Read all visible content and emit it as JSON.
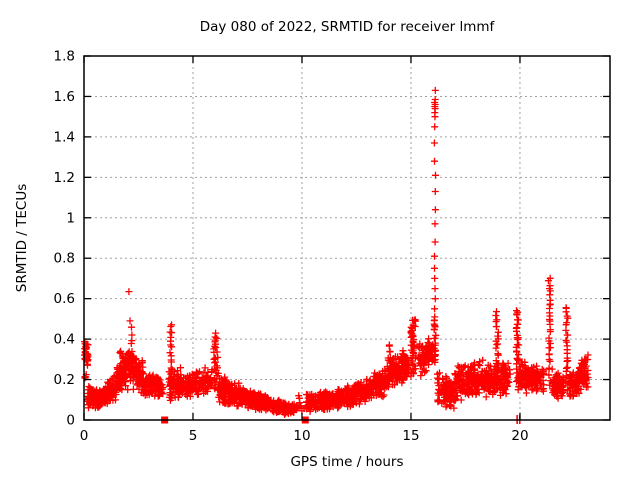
{
  "window": {
    "background": "#ffffff"
  },
  "chart_data": {
    "type": "scatter",
    "title": "Day 080 of 2022, SRMTID for receiver lmmf",
    "xlabel": "GPS time / hours",
    "ylabel": "SRMTID / TECUs",
    "xlim": [
      0,
      24.13
    ],
    "ylim": [
      0,
      1.8
    ],
    "grid": {
      "show": true,
      "color": "#a0a0a0",
      "dash": "2,3"
    },
    "legend": "none",
    "marker": {
      "shape": "plus",
      "color": "#ff0000",
      "size": 7
    },
    "colors": {
      "text": "#000000",
      "border": "#000000"
    },
    "seed": 20220080,
    "xticks": [
      {
        "v": 0,
        "label": "0"
      },
      {
        "v": 5,
        "label": "5"
      },
      {
        "v": 10,
        "label": "10"
      },
      {
        "v": 15,
        "label": "15"
      },
      {
        "v": 20,
        "label": "20"
      }
    ],
    "yticks": [
      {
        "v": 0,
        "label": "0"
      },
      {
        "v": 0.2,
        "label": "0.2"
      },
      {
        "v": 0.4,
        "label": "0.4"
      },
      {
        "v": 0.6,
        "label": "0.6"
      },
      {
        "v": 0.8,
        "label": "0.8"
      },
      {
        "v": 1,
        "label": "1"
      },
      {
        "v": 1.2,
        "label": "1.2"
      },
      {
        "v": 1.4,
        "label": "1.4"
      },
      {
        "v": 1.6,
        "label": "1.6"
      },
      {
        "v": 1.8,
        "label": "1.8"
      }
    ],
    "bands": [
      {
        "x0": 0.02,
        "x1": 0.18,
        "lo0": 0.26,
        "hi0": 0.4,
        "lo1": 0.24,
        "hi1": 0.38,
        "n": 30
      },
      {
        "x0": 0.04,
        "x1": 0.12,
        "lo0": 0.19,
        "hi0": 0.23,
        "lo1": 0.19,
        "hi1": 0.23,
        "n": 4
      },
      {
        "x0": 0.15,
        "x1": 0.8,
        "lo0": 0.05,
        "hi0": 0.17,
        "lo1": 0.05,
        "hi1": 0.15,
        "n": 110
      },
      {
        "x0": 0.8,
        "x1": 1.5,
        "lo0": 0.06,
        "hi0": 0.16,
        "lo1": 0.1,
        "hi1": 0.24,
        "n": 110
      },
      {
        "x0": 1.5,
        "x1": 2.2,
        "lo0": 0.12,
        "hi0": 0.34,
        "lo1": 0.15,
        "hi1": 0.38,
        "n": 110
      },
      {
        "x0": 2.2,
        "x1": 2.7,
        "lo0": 0.14,
        "hi0": 0.36,
        "lo1": 0.12,
        "hi1": 0.3,
        "n": 80
      },
      {
        "x0": 2.7,
        "x1": 3.65,
        "lo0": 0.1,
        "hi0": 0.26,
        "lo1": 0.11,
        "hi1": 0.22,
        "n": 110
      },
      {
        "x0": 3.9,
        "x1": 4.6,
        "lo0": 0.08,
        "hi0": 0.28,
        "lo1": 0.1,
        "hi1": 0.26,
        "n": 90
      },
      {
        "x0": 4.6,
        "x1": 5.9,
        "lo0": 0.1,
        "hi0": 0.24,
        "lo1": 0.13,
        "hi1": 0.27,
        "n": 140
      },
      {
        "x0": 6.15,
        "x1": 7.4,
        "lo0": 0.07,
        "hi0": 0.24,
        "lo1": 0.06,
        "hi1": 0.18,
        "n": 170
      },
      {
        "x0": 7.4,
        "x1": 8.6,
        "lo0": 0.05,
        "hi0": 0.16,
        "lo1": 0.04,
        "hi1": 0.12,
        "n": 180
      },
      {
        "x0": 8.6,
        "x1": 9.65,
        "lo0": 0.03,
        "hi0": 0.11,
        "lo1": 0.02,
        "hi1": 0.08,
        "n": 160
      },
      {
        "x0": 9.7,
        "x1": 10.1,
        "lo0": 0.03,
        "hi0": 0.12,
        "lo1": 0.03,
        "hi1": 0.1,
        "n": 10
      },
      {
        "x0": 10.2,
        "x1": 11.5,
        "lo0": 0.04,
        "hi0": 0.13,
        "lo1": 0.05,
        "hi1": 0.15,
        "n": 180
      },
      {
        "x0": 11.5,
        "x1": 12.8,
        "lo0": 0.05,
        "hi0": 0.16,
        "lo1": 0.07,
        "hi1": 0.19,
        "n": 180
      },
      {
        "x0": 12.8,
        "x1": 13.9,
        "lo0": 0.08,
        "hi0": 0.21,
        "lo1": 0.12,
        "hi1": 0.27,
        "n": 150
      },
      {
        "x0": 13.9,
        "x1": 14.9,
        "lo0": 0.14,
        "hi0": 0.31,
        "lo1": 0.18,
        "hi1": 0.36,
        "n": 130
      },
      {
        "x0": 15.3,
        "x1": 16.0,
        "lo0": 0.2,
        "hi0": 0.38,
        "lo1": 0.26,
        "hi1": 0.42,
        "n": 80
      },
      {
        "x0": 16.2,
        "x1": 17.0,
        "lo0": 0.06,
        "hi0": 0.26,
        "lo1": 0.05,
        "hi1": 0.2,
        "n": 120
      },
      {
        "x0": 17.0,
        "x1": 18.3,
        "lo0": 0.08,
        "hi0": 0.28,
        "lo1": 0.12,
        "hi1": 0.31,
        "n": 170
      },
      {
        "x0": 18.3,
        "x1": 19.6,
        "lo0": 0.1,
        "hi0": 0.28,
        "lo1": 0.12,
        "hi1": 0.3,
        "n": 140
      },
      {
        "x0": 19.95,
        "x1": 21.1,
        "lo0": 0.13,
        "hi0": 0.3,
        "lo1": 0.12,
        "hi1": 0.27,
        "n": 160
      },
      {
        "x0": 21.45,
        "x1": 22.0,
        "lo0": 0.1,
        "hi0": 0.26,
        "lo1": 0.09,
        "hi1": 0.24,
        "n": 80
      },
      {
        "x0": 22.25,
        "x1": 23.15,
        "lo0": 0.08,
        "hi0": 0.25,
        "lo1": 0.15,
        "hi1": 0.34,
        "n": 130
      }
    ],
    "spikes": [
      {
        "x": 2.18,
        "w": 0.06,
        "y0": 0.25,
        "y1": 0.46,
        "n": 8
      },
      {
        "x": 3.98,
        "w": 0.1,
        "y0": 0.1,
        "y1": 0.48,
        "n": 22
      },
      {
        "x": 6.05,
        "w": 0.18,
        "y0": 0.15,
        "y1": 0.42,
        "n": 30
      },
      {
        "x": 14.05,
        "w": 0.1,
        "y0": 0.2,
        "y1": 0.37,
        "n": 14
      },
      {
        "x": 15.1,
        "w": 0.22,
        "y0": 0.22,
        "y1": 0.5,
        "n": 45
      },
      {
        "x": 16.1,
        "w": 0.1,
        "y0": 0.28,
        "y1": 0.5,
        "n": 22
      },
      {
        "x": 18.95,
        "w": 0.12,
        "y0": 0.15,
        "y1": 0.53,
        "n": 26
      },
      {
        "x": 19.9,
        "w": 0.14,
        "y0": 0.15,
        "y1": 0.55,
        "n": 36
      },
      {
        "x": 21.35,
        "w": 0.1,
        "y0": 0.18,
        "y1": 0.7,
        "n": 32
      },
      {
        "x": 22.15,
        "w": 0.12,
        "y0": 0.15,
        "y1": 0.56,
        "n": 26
      }
    ],
    "big_spike": {
      "x": 16.1,
      "values": [
        1.63,
        1.585,
        1.57,
        1.56,
        1.55,
        1.54,
        1.52,
        1.5,
        1.45,
        1.37,
        1.28,
        1.21,
        1.13,
        1.04,
        0.97,
        0.88,
        0.81,
        0.75,
        0.7,
        0.65,
        0.6,
        0.55,
        0.51
      ]
    },
    "outliers": [
      [
        2.06,
        0.635
      ],
      [
        2.11,
        0.49
      ],
      [
        9.85,
        0.12
      ],
      [
        9.95,
        0.07
      ]
    ],
    "zero_squares": [
      3.7,
      10.15
    ],
    "zero_ticks": [
      19.87,
      19.99
    ]
  }
}
